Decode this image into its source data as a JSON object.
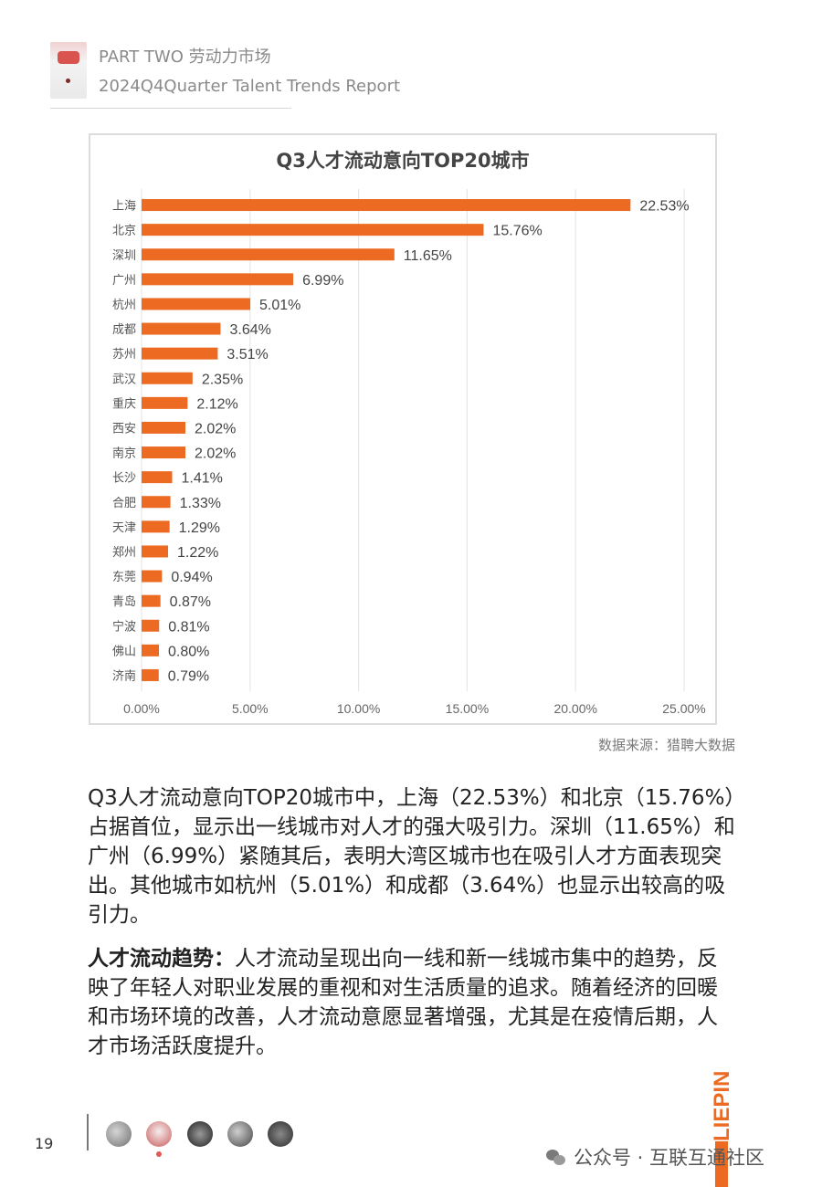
{
  "header": {
    "title": "PART TWO 劳动力市场",
    "subtitle": "2024Q4Quarter Talent Trends Report"
  },
  "chart_data": {
    "type": "bar",
    "orientation": "horizontal",
    "title": "Q3人才流动意向TOP20城市",
    "categories": [
      "上海",
      "北京",
      "深圳",
      "广州",
      "杭州",
      "成都",
      "苏州",
      "武汉",
      "重庆",
      "西安",
      "南京",
      "长沙",
      "合肥",
      "天津",
      "郑州",
      "东莞",
      "青岛",
      "宁波",
      "佛山",
      "济南"
    ],
    "values": [
      22.53,
      15.76,
      11.65,
      6.99,
      5.01,
      3.64,
      3.51,
      2.35,
      2.12,
      2.02,
      2.02,
      1.41,
      1.33,
      1.29,
      1.22,
      0.94,
      0.87,
      0.81,
      0.8,
      0.79
    ],
    "value_labels": [
      "22.53%",
      "15.76%",
      "11.65%",
      "6.99%",
      "5.01%",
      "3.64%",
      "3.51%",
      "2.35%",
      "2.12%",
      "2.02%",
      "2.02%",
      "1.41%",
      "1.33%",
      "1.29%",
      "1.22%",
      "0.94%",
      "0.87%",
      "0.81%",
      "0.80%",
      "0.79%"
    ],
    "xlim": [
      0,
      25
    ],
    "x_ticks": [
      "0.00%",
      "5.00%",
      "10.00%",
      "15.00%",
      "20.00%",
      "25.00%"
    ],
    "grid": true,
    "bar_color": "#ec6a21"
  },
  "source_note": "数据来源：猎聘大数据",
  "paragraph1": "Q3人才流动意向TOP20城市中，上海（22.53%）和北京（15.76%）占据首位，显示出一线城市对人才的强大吸引力。深圳（11.65%）和广州（6.99%）紧随其后，表明大湾区城市也在吸引人才方面表现突出。其他城市如杭州（5.01%）和成都（3.64%）也显示出较高的吸引力。",
  "paragraph2": {
    "lead": "人才流动趋势：",
    "text": "人才流动呈现出向一线和新一线城市集中的趋势，反映了年轻人对职业发展的重视和对生活质量的追求。随着经济的回暖和市场环境的改善，人才流动意愿显著增强，尤其是在疫情后期，人才市场活跃度提升。"
  },
  "footer": {
    "page_number": "19",
    "brand": "LIEPIN",
    "watermark": "公众号 · 互联互通社区"
  },
  "colors": {
    "accent": "#ec6a21"
  }
}
